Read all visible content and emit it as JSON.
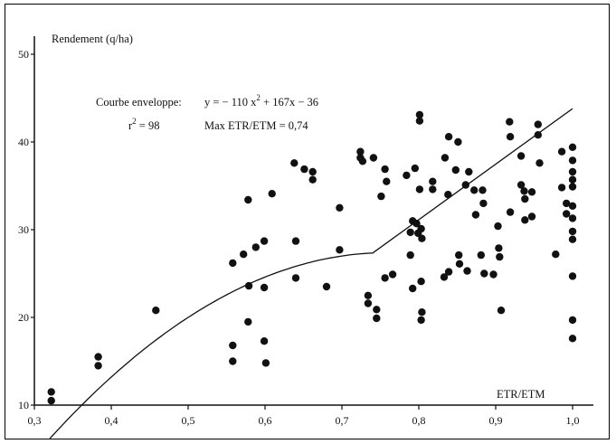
{
  "chart_data": {
    "type": "scatter",
    "ylabel": "Rendement (q/ha)",
    "xlabel": "ETR/ETM",
    "xlim": [
      0.3,
      1.0
    ],
    "ylim": [
      10,
      50
    ],
    "x_ticks": [
      "0,3",
      "0,4",
      "0,5",
      "0,6",
      "0,7",
      "0,8",
      "0,9",
      "1,0"
    ],
    "y_ticks": [
      "10",
      "20",
      "30",
      "40",
      "50"
    ],
    "annotation_line1_prefix": "Courbe enveloppe:",
    "annotation_line1_formula_a": "y = − 110 x",
    "annotation_line1_sup": "2",
    "annotation_line1_formula_b": " + 167x  − 36",
    "annotation_line2_r": "r",
    "annotation_line2_sup": "2",
    "annotation_line2_rest": " = 98",
    "annotation_line2_max": "Max ETR/ETM = 0,74",
    "grid": false,
    "envelope_curve": {
      "a": -110,
      "b": 167,
      "c": -36,
      "x_start": 0.32,
      "x_max": 0.74,
      "y_max": 43.8,
      "x_end": 1.0
    },
    "points": [
      [
        0.322,
        11.5
      ],
      [
        0.322,
        10.5
      ],
      [
        0.383,
        15.5
      ],
      [
        0.383,
        14.5
      ],
      [
        0.458,
        20.8
      ],
      [
        0.558,
        26.2
      ],
      [
        0.558,
        16.8
      ],
      [
        0.558,
        15.0
      ],
      [
        0.572,
        27.2
      ],
      [
        0.578,
        33.4
      ],
      [
        0.579,
        23.6
      ],
      [
        0.578,
        19.5
      ],
      [
        0.588,
        28.0
      ],
      [
        0.599,
        28.7
      ],
      [
        0.599,
        23.4
      ],
      [
        0.599,
        17.3
      ],
      [
        0.601,
        14.8
      ],
      [
        0.609,
        34.1
      ],
      [
        0.638,
        37.6
      ],
      [
        0.64,
        28.7
      ],
      [
        0.64,
        24.5
      ],
      [
        0.651,
        36.9
      ],
      [
        0.662,
        36.6
      ],
      [
        0.662,
        35.7
      ],
      [
        0.68,
        23.5
      ],
      [
        0.697,
        32.5
      ],
      [
        0.697,
        27.7
      ],
      [
        0.724,
        38.9
      ],
      [
        0.724,
        38.2
      ],
      [
        0.727,
        37.8
      ],
      [
        0.734,
        22.5
      ],
      [
        0.734,
        21.6
      ],
      [
        0.741,
        38.2
      ],
      [
        0.745,
        20.9
      ],
      [
        0.745,
        19.9
      ],
      [
        0.751,
        33.8
      ],
      [
        0.756,
        36.9
      ],
      [
        0.758,
        35.5
      ],
      [
        0.756,
        24.5
      ],
      [
        0.766,
        24.9
      ],
      [
        0.784,
        36.2
      ],
      [
        0.789,
        29.7
      ],
      [
        0.789,
        27.1
      ],
      [
        0.792,
        31.0
      ],
      [
        0.792,
        23.3
      ],
      [
        0.795,
        37.0
      ],
      [
        0.797,
        30.7
      ],
      [
        0.799,
        29.6
      ],
      [
        0.801,
        34.6
      ],
      [
        0.803,
        30.1
      ],
      [
        0.804,
        29.0
      ],
      [
        0.803,
        24.1
      ],
      [
        0.804,
        20.6
      ],
      [
        0.803,
        19.7
      ],
      [
        0.801,
        43.1
      ],
      [
        0.801,
        42.4
      ],
      [
        0.818,
        35.5
      ],
      [
        0.818,
        34.6
      ],
      [
        0.834,
        38.2
      ],
      [
        0.839,
        40.6
      ],
      [
        0.838,
        34.0
      ],
      [
        0.833,
        24.6
      ],
      [
        0.839,
        25.2
      ],
      [
        0.848,
        36.8
      ],
      [
        0.851,
        40.0
      ],
      [
        0.852,
        27.1
      ],
      [
        0.853,
        26.1
      ],
      [
        0.861,
        35.1
      ],
      [
        0.865,
        36.6
      ],
      [
        0.863,
        25.3
      ],
      [
        0.872,
        34.5
      ],
      [
        0.874,
        31.7
      ],
      [
        0.883,
        34.5
      ],
      [
        0.884,
        33.0
      ],
      [
        0.885,
        25.0
      ],
      [
        0.881,
        27.1
      ],
      [
        0.897,
        24.9
      ],
      [
        0.903,
        30.4
      ],
      [
        0.904,
        27.9
      ],
      [
        0.905,
        26.9
      ],
      [
        0.907,
        20.8
      ],
      [
        0.918,
        42.3
      ],
      [
        0.919,
        40.6
      ],
      [
        0.919,
        32.0
      ],
      [
        0.933,
        38.4
      ],
      [
        0.933,
        35.1
      ],
      [
        0.937,
        34.4
      ],
      [
        0.938,
        33.5
      ],
      [
        0.938,
        31.1
      ],
      [
        0.947,
        31.5
      ],
      [
        0.947,
        34.3
      ],
      [
        0.955,
        42.0
      ],
      [
        0.955,
        40.8
      ],
      [
        0.957,
        37.6
      ],
      [
        0.978,
        27.2
      ],
      [
        0.986,
        38.9
      ],
      [
        0.986,
        34.8
      ],
      [
        0.992,
        33.0
      ],
      [
        0.992,
        31.8
      ],
      [
        1.0,
        39.4
      ],
      [
        1.0,
        37.9
      ],
      [
        1.0,
        36.6
      ],
      [
        1.0,
        35.7
      ],
      [
        1.0,
        34.9
      ],
      [
        1.0,
        32.7
      ],
      [
        1.0,
        31.3
      ],
      [
        1.0,
        29.8
      ],
      [
        1.0,
        28.9
      ],
      [
        1.0,
        24.7
      ],
      [
        1.0,
        19.7
      ],
      [
        1.0,
        17.6
      ]
    ]
  }
}
